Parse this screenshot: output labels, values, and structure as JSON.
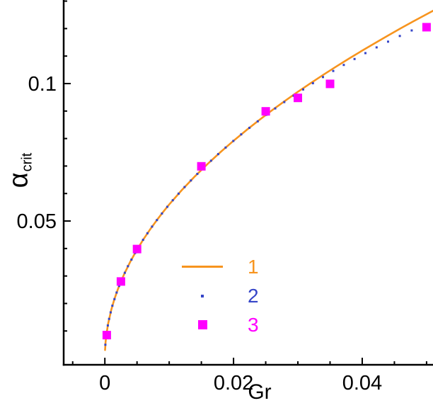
{
  "figure": {
    "background": "#ffffff",
    "text_color": "#000000",
    "axis_color": "#000000"
  },
  "chart_data": {
    "type": "line",
    "title": "",
    "xlabel": "Gr",
    "ylabel": "α_crit",
    "ylabel_main": "α",
    "ylabel_sub": "crit",
    "grid": false,
    "legend_position": "inside-lower-center",
    "x_axis": {
      "min": -0.0064,
      "max": 0.051,
      "major_ticks": [
        0,
        0.02,
        0.04
      ],
      "major_tick_labels": [
        "0",
        "0.02",
        "0.04"
      ],
      "minor_ticks": [
        -0.005,
        0.005,
        0.01,
        0.015,
        0.025,
        0.03,
        0.035,
        0.045,
        0.05
      ]
    },
    "y_axis": {
      "min": -0.0023,
      "max": 0.1304,
      "major_ticks": [
        0.05,
        0.1
      ],
      "major_tick_labels": [
        "0.05",
        "0.1"
      ],
      "minor_ticks": [
        0.01,
        0.02,
        0.03,
        0.04,
        0.06,
        0.07,
        0.08,
        0.09,
        0.11,
        0.12,
        0.13
      ]
    },
    "series": [
      {
        "name": "1",
        "type": "line",
        "color": "#F7941E",
        "line_width": 2.6,
        "points": [
          [
            3e-05,
            0.00307
          ],
          [
            0.0001,
            0.0056
          ],
          [
            0.0002,
            0.00792
          ],
          [
            0.0005,
            0.01252
          ],
          [
            0.001,
            0.01771
          ],
          [
            0.0015,
            0.02169
          ],
          [
            0.002,
            0.02504
          ],
          [
            0.0025,
            0.028
          ],
          [
            0.003,
            0.03067
          ],
          [
            0.004,
            0.03542
          ],
          [
            0.005,
            0.0396
          ],
          [
            0.006,
            0.04338
          ],
          [
            0.007,
            0.04685
          ],
          [
            0.008,
            0.05009
          ],
          [
            0.009,
            0.05313
          ],
          [
            0.01,
            0.056
          ],
          [
            0.012,
            0.06134
          ],
          [
            0.014,
            0.06626
          ],
          [
            0.016,
            0.07083
          ],
          [
            0.018,
            0.07513
          ],
          [
            0.02,
            0.0792
          ],
          [
            0.022,
            0.08306
          ],
          [
            0.024,
            0.08675
          ],
          [
            0.026,
            0.0903
          ],
          [
            0.028,
            0.0937
          ],
          [
            0.03,
            0.097
          ],
          [
            0.032,
            0.10018
          ],
          [
            0.034,
            0.10326
          ],
          [
            0.036,
            0.10625
          ],
          [
            0.038,
            0.10916
          ],
          [
            0.04,
            0.112
          ],
          [
            0.042,
            0.11477
          ],
          [
            0.044,
            0.11747
          ],
          [
            0.046,
            0.12011
          ],
          [
            0.048,
            0.12269
          ],
          [
            0.05,
            0.12522
          ],
          [
            0.0515,
            0.12709
          ]
        ]
      },
      {
        "name": "2",
        "type": "scatter-dot",
        "color": "#3545C8",
        "marker_size": 3,
        "points": [
          [
            8e-05,
            0.005
          ],
          [
            0.00018,
            0.0075
          ],
          [
            0.00029,
            0.0096
          ],
          [
            0.00046,
            0.012
          ],
          [
            0.00066,
            0.01439
          ],
          [
            0.0009,
            0.01678
          ],
          [
            0.00117,
            0.01918
          ],
          [
            0.00149,
            0.02158
          ],
          [
            0.00183,
            0.02398
          ],
          [
            0.00222,
            0.02638
          ],
          [
            0.00264,
            0.02877
          ],
          [
            0.0031,
            0.03117
          ],
          [
            0.00359,
            0.03357
          ],
          [
            0.00413,
            0.03597
          ],
          [
            0.00469,
            0.03836
          ],
          [
            0.0053,
            0.04076
          ],
          [
            0.00594,
            0.04316
          ],
          [
            0.00662,
            0.04556
          ],
          [
            0.00733,
            0.04796
          ],
          [
            0.00809,
            0.05035
          ],
          [
            0.00887,
            0.05275
          ],
          [
            0.0097,
            0.05515
          ],
          [
            0.01056,
            0.05755
          ],
          [
            0.01146,
            0.05995
          ],
          [
            0.01239,
            0.06234
          ],
          [
            0.01337,
            0.06474
          ],
          [
            0.01437,
            0.06714
          ],
          [
            0.01542,
            0.06954
          ],
          [
            0.0165,
            0.07193
          ],
          [
            0.01762,
            0.07433
          ],
          [
            0.01877,
            0.07673
          ],
          [
            0.01997,
            0.07913
          ],
          [
            0.02119,
            0.08152
          ],
          [
            0.02246,
            0.0839
          ],
          [
            0.02376,
            0.08627
          ],
          [
            0.0251,
            0.08862
          ],
          [
            0.02648,
            0.09096
          ],
          [
            0.02789,
            0.09328
          ],
          [
            0.02934,
            0.09557
          ],
          [
            0.03082,
            0.09786
          ],
          [
            0.03234,
            0.10012
          ],
          [
            0.0339,
            0.10236
          ],
          [
            0.0355,
            0.10457
          ],
          [
            0.03713,
            0.10676
          ],
          [
            0.0388,
            0.10893
          ],
          [
            0.0405,
            0.11107
          ],
          [
            0.04224,
            0.11317
          ],
          [
            0.04402,
            0.11525
          ],
          [
            0.04584,
            0.1173
          ],
          [
            0.04769,
            0.11931
          ],
          [
            0.04958,
            0.12129
          ],
          [
            0.0515,
            0.12323
          ]
        ]
      },
      {
        "name": "3",
        "type": "scatter-square",
        "color": "#FF00FF",
        "marker_size": 12,
        "points": [
          [
            0.0003,
            0.0085
          ],
          [
            0.0025,
            0.028
          ],
          [
            0.005,
            0.0398
          ],
          [
            0.015,
            0.0699
          ],
          [
            0.025,
            0.0899
          ],
          [
            0.03,
            0.0948
          ],
          [
            0.035,
            0.0999
          ],
          [
            0.05,
            0.1205
          ]
        ]
      }
    ]
  }
}
